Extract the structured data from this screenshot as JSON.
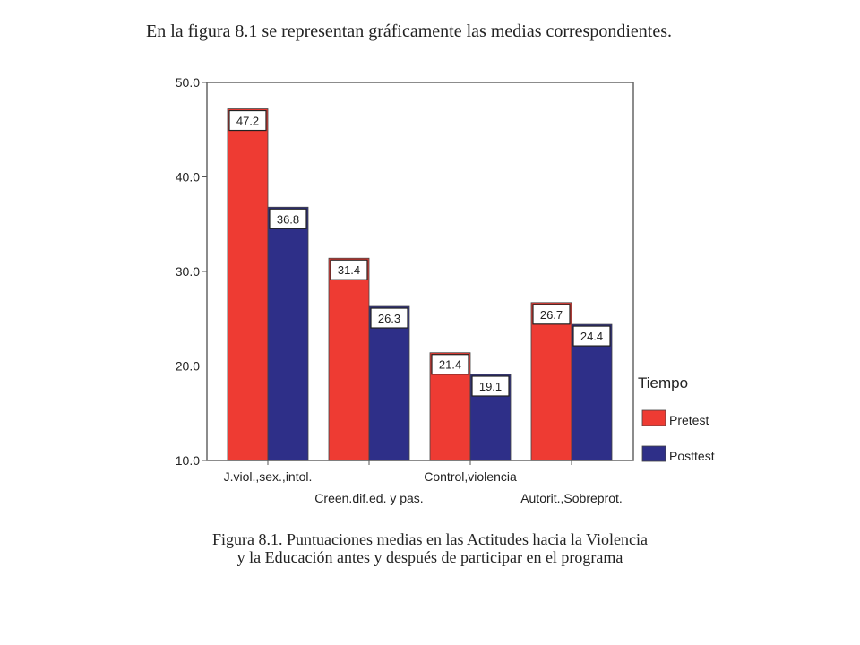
{
  "intro_text": "En la figura 8.1 se representan gráficamente las medias correspondientes.",
  "caption": {
    "line1": "Figura 8.1. Puntuaciones medias en las Actitudes hacia la Violencia",
    "line2": "y la Educación antes y después de participar en el programa"
  },
  "chart_data": {
    "type": "bar",
    "categories": [
      "J.viol.,sex.,intol.",
      "Creen.dif.ed. y pas.",
      "Control,violencia",
      "Autorit.,Sobreprot."
    ],
    "series": [
      {
        "name": "Pretest",
        "values": [
          47.2,
          31.4,
          21.4,
          26.7
        ],
        "color": "#ee3b33"
      },
      {
        "name": "Posttest",
        "values": [
          36.8,
          26.3,
          19.1,
          24.4
        ],
        "color": "#2e2f88"
      }
    ],
    "ylim": [
      10,
      50
    ],
    "yticks": [
      "10.0",
      "20.0",
      "30.0",
      "40.0",
      "50.0"
    ],
    "legend": {
      "title": "Tiempo",
      "placement": "right"
    },
    "grid": false
  }
}
